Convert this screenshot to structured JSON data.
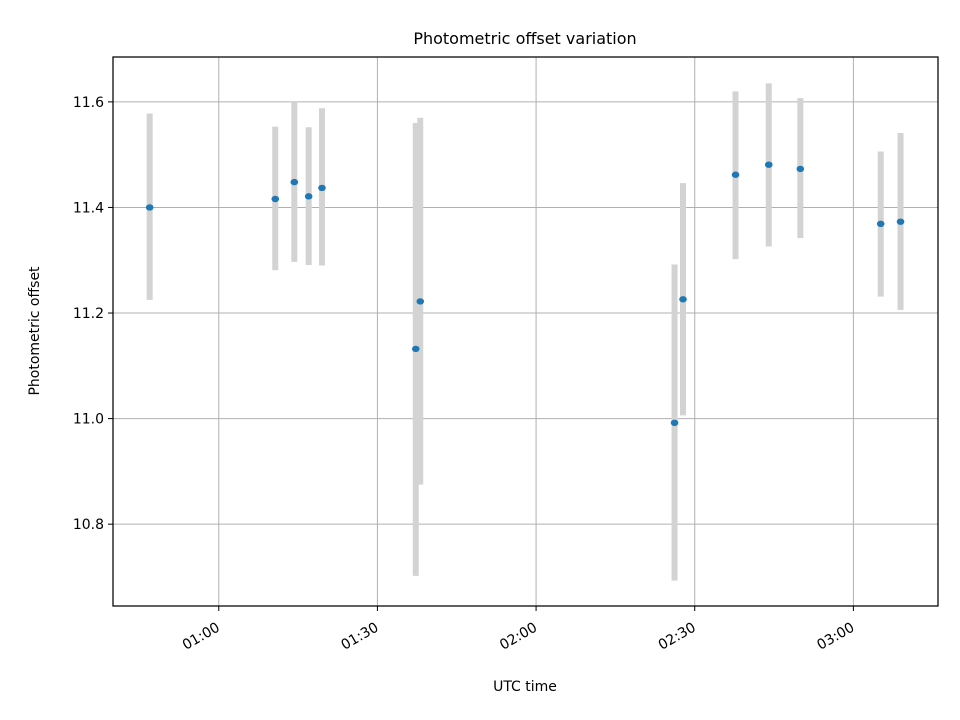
{
  "chart_data": {
    "type": "scatter",
    "title": "Photometric offset variation",
    "xlabel": "UTC time",
    "ylabel": "Photometric offset",
    "x_axis_type": "time",
    "xlim": [
      "00:40:00",
      "03:16:00"
    ],
    "ylim": [
      10.645,
      11.685
    ],
    "grid": true,
    "x_ticks": [
      {
        "time": "01:00:00",
        "label": "01:00"
      },
      {
        "time": "01:30:00",
        "label": "01:30"
      },
      {
        "time": "02:00:00",
        "label": "02:00"
      },
      {
        "time": "02:30:00",
        "label": "02:30"
      },
      {
        "time": "03:00:00",
        "label": "03:00"
      }
    ],
    "y_ticks": [
      10.8,
      11.0,
      11.2,
      11.4,
      11.6
    ],
    "y_tick_labels": [
      "10.8",
      "11.0",
      "11.2",
      "11.4",
      "11.6"
    ],
    "errorbar_color": "#d3d3d3",
    "point_color": "#1f77b4",
    "points": [
      {
        "t": "00:46:56",
        "y": 11.4,
        "err_low": 11.225,
        "err_high": 11.578
      },
      {
        "t": "01:10:41",
        "y": 11.416,
        "err_low": 11.281,
        "err_high": 11.553
      },
      {
        "t": "01:14:17",
        "y": 11.448,
        "err_low": 11.297,
        "err_high": 11.6
      },
      {
        "t": "01:17:00",
        "y": 11.421,
        "err_low": 11.291,
        "err_high": 11.552
      },
      {
        "t": "01:19:31",
        "y": 11.437,
        "err_low": 11.29,
        "err_high": 11.588
      },
      {
        "t": "01:37:15",
        "y": 11.132,
        "err_low": 10.702,
        "err_high": 11.56
      },
      {
        "t": "01:38:06",
        "y": 11.222,
        "err_low": 10.875,
        "err_high": 11.57
      },
      {
        "t": "02:26:11",
        "y": 10.992,
        "err_low": 10.693,
        "err_high": 11.292
      },
      {
        "t": "02:27:47",
        "y": 11.226,
        "err_low": 11.006,
        "err_high": 11.446
      },
      {
        "t": "02:37:43",
        "y": 11.462,
        "err_low": 11.302,
        "err_high": 11.62
      },
      {
        "t": "02:44:00",
        "y": 11.481,
        "err_low": 11.326,
        "err_high": 11.635
      },
      {
        "t": "02:49:58",
        "y": 11.473,
        "err_low": 11.342,
        "err_high": 11.607
      },
      {
        "t": "03:05:10",
        "y": 11.369,
        "err_low": 11.231,
        "err_high": 11.506
      },
      {
        "t": "03:08:55",
        "y": 11.373,
        "err_low": 11.206,
        "err_high": 11.541
      }
    ]
  }
}
